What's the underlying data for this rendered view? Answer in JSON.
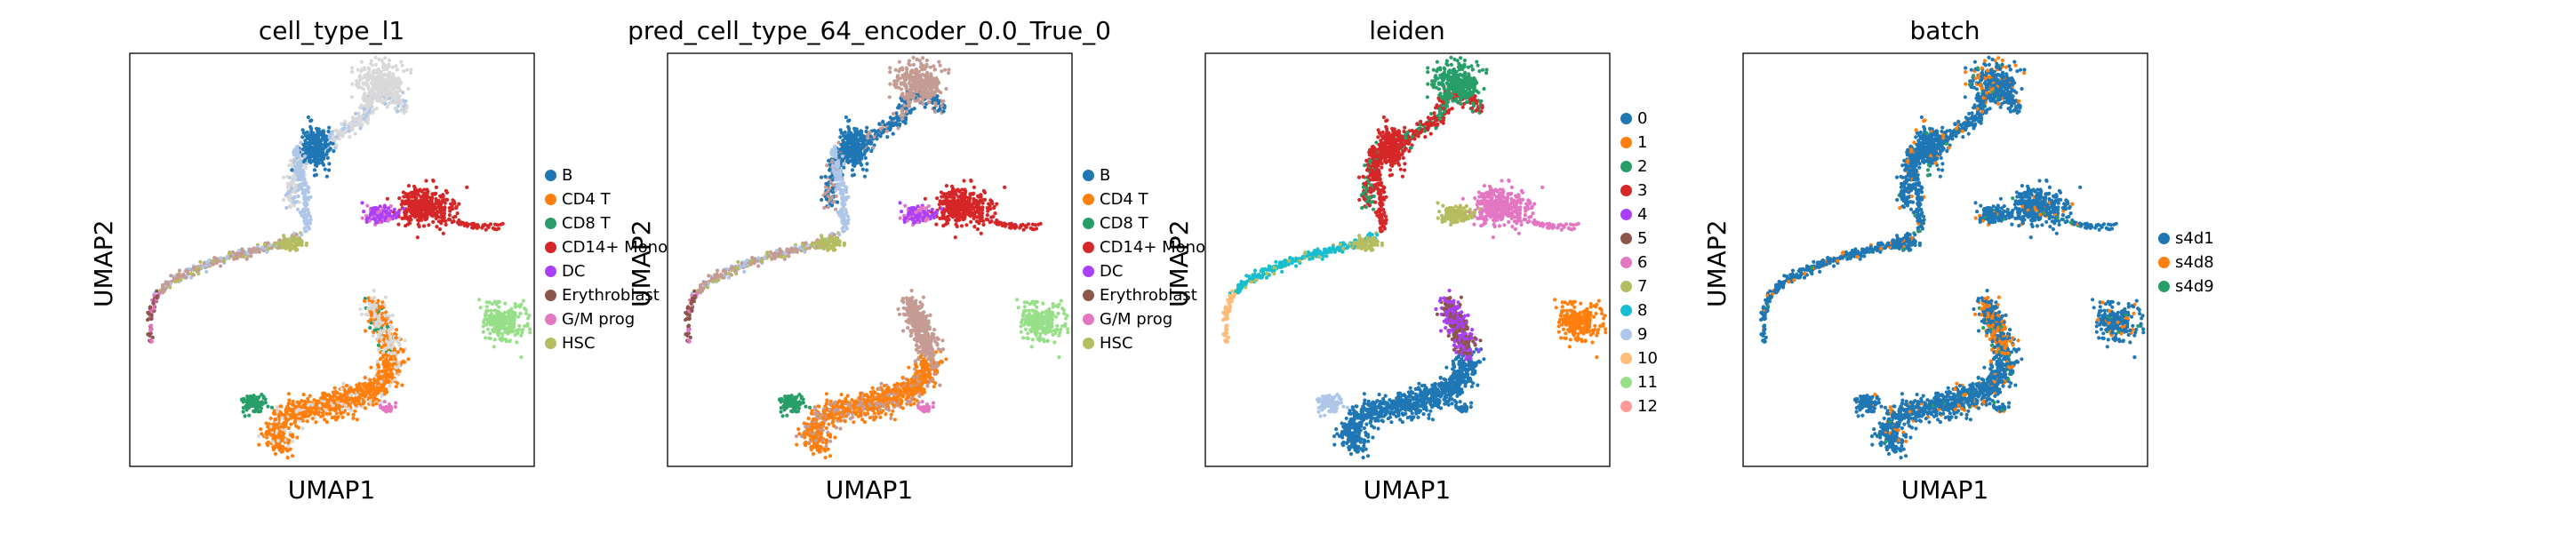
{
  "chart_data": [
    {
      "type": "scatter",
      "title": "cell_type_l1",
      "xlabel": "UMAP1",
      "ylabel": "UMAP2",
      "color_mode": "celltype",
      "legend": [
        {
          "label": "B",
          "color": "#1f77b4"
        },
        {
          "label": "CD4 T",
          "color": "#ff7f0e"
        },
        {
          "label": "CD8 T",
          "color": "#279e68"
        },
        {
          "label": "CD14+ Mono",
          "color": "#d62728"
        },
        {
          "label": "DC",
          "color": "#aa40fc"
        },
        {
          "label": "Erythroblast",
          "color": "#8c564b"
        },
        {
          "label": "G/M prog",
          "color": "#e377c2"
        },
        {
          "label": "HSC",
          "color": "#b5bd61"
        }
      ]
    },
    {
      "type": "scatter",
      "title": "pred_cell_type_64_encoder_0.0_True_0",
      "xlabel": "UMAP1",
      "ylabel": "UMAP2",
      "color_mode": "pred",
      "legend": [
        {
          "label": "B",
          "color": "#1f77b4"
        },
        {
          "label": "CD4 T",
          "color": "#ff7f0e"
        },
        {
          "label": "CD8 T",
          "color": "#279e68"
        },
        {
          "label": "CD14+ Mono",
          "color": "#d62728"
        },
        {
          "label": "DC",
          "color": "#aa40fc"
        },
        {
          "label": "Erythroblast",
          "color": "#8c564b"
        },
        {
          "label": "G/M prog",
          "color": "#e377c2"
        },
        {
          "label": "HSC",
          "color": "#b5bd61"
        }
      ]
    },
    {
      "type": "scatter",
      "title": "leiden",
      "xlabel": "UMAP1",
      "ylabel": "UMAP2",
      "color_mode": "leiden",
      "legend": [
        {
          "label": "0",
          "color": "#1f77b4"
        },
        {
          "label": "1",
          "color": "#ff7f0e"
        },
        {
          "label": "2",
          "color": "#279e68"
        },
        {
          "label": "3",
          "color": "#d62728"
        },
        {
          "label": "4",
          "color": "#aa40fc"
        },
        {
          "label": "5",
          "color": "#8c564b"
        },
        {
          "label": "6",
          "color": "#e377c2"
        },
        {
          "label": "7",
          "color": "#b5bd61"
        },
        {
          "label": "8",
          "color": "#17becf"
        },
        {
          "label": "9",
          "color": "#aec7e8"
        },
        {
          "label": "10",
          "color": "#ffbb78"
        },
        {
          "label": "11",
          "color": "#98df8a"
        },
        {
          "label": "12",
          "color": "#ff9896"
        }
      ]
    },
    {
      "type": "scatter",
      "title": "batch",
      "xlabel": "UMAP1",
      "ylabel": "UMAP2",
      "color_mode": "batch",
      "legend": [
        {
          "label": "s4d1",
          "color": "#1f77b4"
        },
        {
          "label": "s4d8",
          "color": "#ff7f0e"
        },
        {
          "label": "s4d9",
          "color": "#279e68"
        }
      ]
    }
  ]
}
